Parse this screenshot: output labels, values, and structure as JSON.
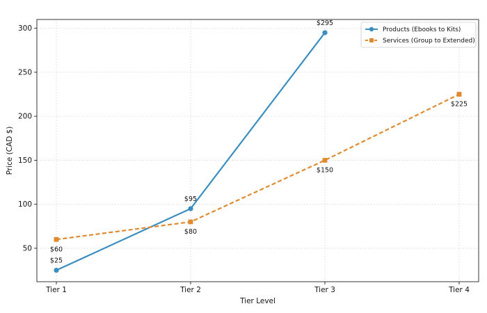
{
  "chart_data": {
    "type": "line",
    "title": "",
    "xlabel": "Tier Level",
    "ylabel": "Price (CAD $)",
    "categories": [
      "Tier 1",
      "Tier 2",
      "Tier 3",
      "Tier 4"
    ],
    "ylim": [
      12,
      310
    ],
    "yticks": [
      50,
      100,
      150,
      200,
      250,
      300
    ],
    "grid": true,
    "legend_position": "top-right",
    "series": [
      {
        "name": "Products (Ebooks to Kits)",
        "values": [
          25,
          95,
          295,
          null
        ],
        "labels": [
          "$25",
          "$95",
          "$295",
          null
        ],
        "label_side": "above",
        "color": "#3a8dbf",
        "marker": "circle",
        "line_style": "solid"
      },
      {
        "name": "Services (Group to Extended)",
        "values": [
          60,
          80,
          150,
          225
        ],
        "labels": [
          "$60",
          "$80",
          "$150",
          "$225"
        ],
        "label_side": "below",
        "color": "#e08a2e",
        "marker": "square",
        "line_style": "dashed"
      }
    ]
  }
}
